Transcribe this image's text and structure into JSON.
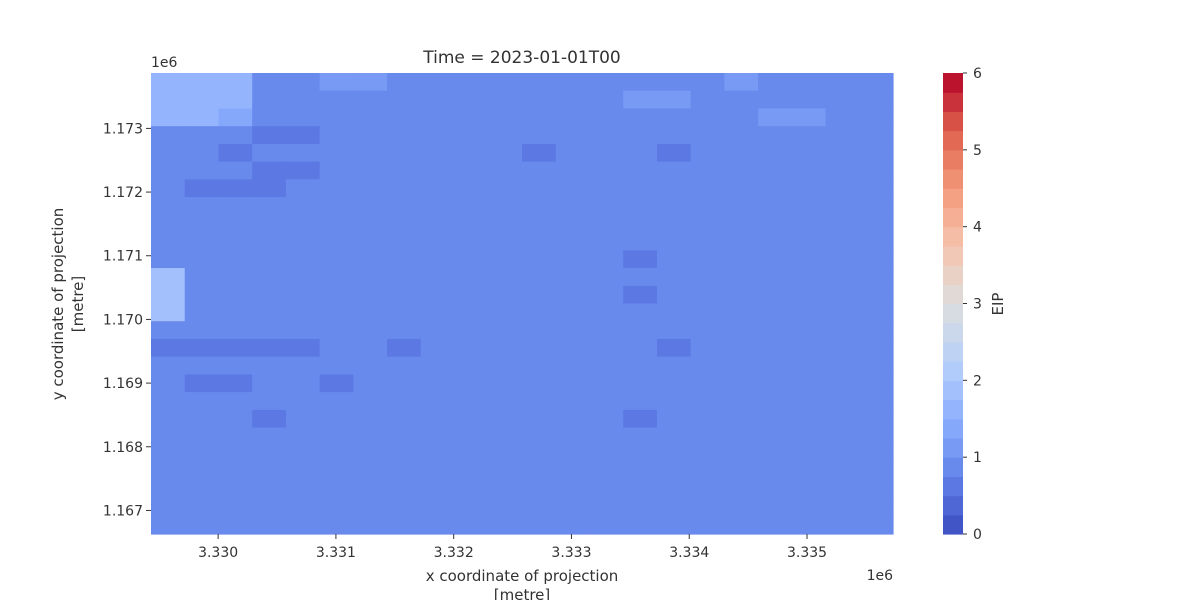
{
  "chart_data": {
    "type": "heatmap",
    "title": "Time = 2023-01-01T00",
    "xlabel_line1": "x coordinate of projection",
    "xlabel_line2": "[metre]",
    "ylabel_line1": "y coordinate of projection",
    "ylabel_line2": "[metre]",
    "x_offset_label": "1e6",
    "y_offset_label": "1e6",
    "colorbar_label": "EIP",
    "colormap": "coolwarm",
    "clim": [
      0,
      6
    ],
    "colorbar_levels": 24,
    "colorbar_ticks": [
      "0",
      "1",
      "2",
      "3",
      "4",
      "5",
      "6"
    ],
    "xlim": [
      3.32943,
      3.33573
    ],
    "ylim": [
      1.16663,
      1.17387
    ],
    "x_ticks": [
      "3.330",
      "3.331",
      "3.332",
      "3.333",
      "3.334",
      "3.335"
    ],
    "y_ticks": [
      "1.173",
      "1.172",
      "1.171",
      "1.170",
      "1.169",
      "1.168",
      "1.167"
    ],
    "grid": false,
    "values": [
      [
        1.6,
        1.6,
        1.6,
        0.9,
        0.9,
        1.0,
        1.0,
        0.9,
        0.9,
        0.9,
        0.9,
        0.9,
        0.8,
        0.9,
        0.9,
        0.9,
        0.9,
        1.0,
        0.8,
        0.8,
        0.8,
        0.9
      ],
      [
        1.6,
        1.6,
        1.6,
        0.9,
        0.9,
        0.9,
        0.9,
        0.9,
        0.9,
        0.9,
        0.9,
        0.9,
        0.8,
        0.8,
        1.0,
        1.0,
        0.9,
        0.9,
        0.9,
        0.9,
        0.9,
        0.9
      ],
      [
        1.6,
        1.6,
        1.4,
        0.8,
        0.8,
        0.9,
        0.9,
        0.9,
        0.9,
        0.8,
        0.8,
        0.9,
        0.9,
        0.8,
        0.9,
        0.9,
        0.9,
        0.9,
        1.0,
        1.0,
        0.8,
        0.8
      ],
      [
        0.9,
        0.9,
        0.8,
        0.7,
        0.7,
        0.9,
        0.8,
        0.8,
        0.8,
        0.8,
        0.8,
        0.8,
        0.8,
        0.8,
        0.8,
        0.8,
        0.8,
        0.8,
        0.8,
        0.8,
        0.8,
        0.8
      ],
      [
        0.9,
        0.9,
        0.7,
        0.8,
        0.8,
        0.8,
        0.8,
        0.8,
        0.8,
        0.8,
        0.8,
        0.7,
        0.8,
        0.8,
        0.8,
        0.7,
        0.8,
        0.8,
        0.8,
        0.8,
        0.9,
        0.8
      ],
      [
        0.9,
        0.8,
        0.8,
        0.7,
        0.7,
        0.8,
        0.8,
        0.8,
        0.8,
        0.8,
        0.8,
        0.8,
        0.8,
        0.8,
        0.8,
        0.8,
        0.8,
        0.8,
        0.8,
        0.8,
        0.8,
        0.8
      ],
      [
        0.9,
        0.7,
        0.7,
        0.7,
        0.8,
        0.8,
        0.8,
        0.8,
        0.8,
        0.9,
        0.8,
        0.8,
        0.9,
        0.8,
        0.8,
        0.8,
        0.8,
        0.8,
        0.8,
        0.8,
        0.8,
        0.8
      ],
      [
        0.9,
        0.8,
        0.8,
        0.8,
        0.8,
        0.8,
        0.8,
        0.8,
        0.8,
        0.8,
        0.8,
        0.8,
        0.8,
        0.8,
        0.8,
        0.8,
        0.8,
        0.8,
        0.8,
        0.8,
        0.8,
        0.8
      ],
      [
        0.9,
        0.9,
        0.9,
        0.9,
        0.8,
        0.8,
        0.8,
        0.8,
        0.8,
        0.8,
        0.8,
        0.8,
        0.8,
        0.8,
        0.8,
        0.8,
        0.8,
        0.8,
        0.8,
        0.8,
        0.8,
        0.8
      ],
      [
        0.9,
        0.9,
        0.8,
        0.8,
        0.8,
        0.9,
        0.8,
        0.8,
        0.8,
        0.8,
        0.8,
        0.8,
        0.8,
        0.8,
        0.8,
        0.8,
        0.8,
        0.8,
        0.8,
        0.8,
        0.8,
        0.8
      ],
      [
        0.9,
        0.8,
        0.8,
        0.8,
        0.8,
        0.8,
        0.8,
        0.8,
        0.8,
        0.8,
        0.8,
        0.8,
        0.8,
        0.8,
        0.7,
        0.8,
        0.8,
        0.8,
        0.8,
        0.8,
        0.8,
        0.8
      ],
      [
        1.9,
        0.9,
        0.9,
        0.9,
        0.8,
        0.8,
        0.8,
        0.8,
        0.8,
        0.8,
        0.8,
        0.8,
        0.8,
        0.8,
        0.8,
        0.8,
        0.8,
        0.8,
        0.8,
        0.8,
        0.8,
        0.8
      ],
      [
        1.9,
        0.8,
        0.8,
        0.8,
        0.8,
        0.8,
        0.8,
        0.8,
        0.8,
        0.8,
        0.8,
        0.8,
        0.8,
        0.8,
        0.7,
        0.8,
        0.8,
        0.8,
        0.8,
        0.8,
        0.8,
        0.8
      ],
      [
        1.9,
        0.8,
        0.8,
        0.8,
        0.8,
        0.8,
        0.8,
        0.8,
        0.8,
        0.8,
        0.8,
        0.9,
        0.8,
        0.8,
        0.8,
        0.8,
        0.8,
        0.8,
        0.8,
        0.8,
        0.8,
        0.9
      ],
      [
        0.9,
        0.8,
        0.8,
        0.8,
        0.8,
        0.8,
        0.8,
        0.8,
        0.8,
        0.8,
        0.8,
        0.8,
        0.9,
        0.8,
        0.8,
        0.8,
        0.8,
        0.8,
        0.8,
        0.8,
        0.8,
        0.8
      ],
      [
        0.7,
        0.7,
        0.7,
        0.7,
        0.7,
        0.8,
        0.8,
        0.7,
        0.8,
        0.8,
        0.8,
        0.8,
        0.8,
        0.8,
        0.8,
        0.7,
        0.8,
        0.8,
        0.8,
        0.8,
        0.8,
        0.8
      ],
      [
        0.8,
        0.8,
        0.8,
        0.8,
        0.8,
        0.8,
        0.8,
        0.8,
        0.9,
        0.9,
        0.9,
        0.9,
        0.8,
        0.8,
        0.8,
        0.9,
        0.8,
        0.8,
        0.8,
        0.8,
        0.8,
        0.8
      ],
      [
        0.8,
        0.7,
        0.7,
        0.8,
        0.8,
        0.7,
        0.8,
        0.8,
        0.8,
        0.8,
        0.8,
        0.8,
        0.8,
        0.8,
        0.8,
        0.9,
        0.8,
        0.8,
        0.8,
        0.8,
        0.8,
        0.8
      ],
      [
        0.8,
        0.8,
        0.8,
        0.8,
        0.8,
        0.8,
        0.8,
        0.8,
        0.8,
        0.8,
        0.8,
        0.8,
        0.8,
        0.8,
        0.8,
        0.9,
        0.9,
        0.8,
        0.8,
        0.8,
        0.8,
        0.8
      ],
      [
        0.8,
        0.8,
        0.8,
        0.7,
        0.8,
        0.8,
        0.8,
        0.8,
        0.8,
        0.8,
        0.8,
        0.8,
        0.8,
        0.8,
        0.7,
        0.8,
        0.8,
        0.8,
        0.8,
        0.8,
        0.8,
        0.8
      ],
      [
        0.8,
        0.8,
        0.8,
        0.8,
        0.8,
        0.8,
        0.8,
        0.9,
        0.8,
        0.8,
        0.8,
        0.8,
        0.8,
        0.8,
        0.8,
        0.8,
        0.8,
        0.8,
        0.8,
        0.8,
        0.8,
        0.8
      ],
      [
        0.8,
        0.8,
        0.8,
        0.8,
        0.8,
        0.8,
        0.8,
        0.8,
        0.8,
        0.8,
        0.8,
        0.8,
        0.8,
        0.8,
        0.8,
        0.8,
        0.8,
        0.8,
        0.8,
        0.8,
        0.8,
        0.8
      ],
      [
        0.9,
        0.9,
        0.8,
        0.8,
        0.8,
        0.8,
        0.8,
        0.8,
        0.8,
        0.8,
        0.8,
        0.8,
        0.8,
        0.8,
        0.8,
        0.8,
        0.8,
        0.8,
        0.8,
        0.8,
        0.8,
        0.8
      ],
      [
        0.9,
        0.8,
        0.8,
        0.8,
        0.8,
        0.8,
        0.8,
        0.8,
        0.8,
        0.8,
        0.8,
        0.8,
        0.8,
        0.8,
        0.8,
        0.8,
        0.8,
        0.8,
        0.8,
        0.8,
        0.8,
        0.8
      ],
      [
        0.8,
        0.8,
        0.8,
        0.8,
        0.8,
        0.8,
        0.8,
        0.8,
        0.8,
        0.8,
        0.8,
        0.8,
        0.8,
        0.8,
        0.8,
        0.8,
        0.8,
        0.8,
        0.8,
        0.8,
        0.8,
        0.8
      ],
      [
        0.8,
        0.8,
        0.8,
        0.8,
        0.8,
        0.8,
        0.8,
        0.8,
        0.8,
        0.8,
        0.8,
        0.8,
        0.8,
        0.8,
        0.8,
        0.8,
        0.8,
        0.8,
        0.8,
        0.8,
        0.8,
        0.8
      ]
    ]
  }
}
